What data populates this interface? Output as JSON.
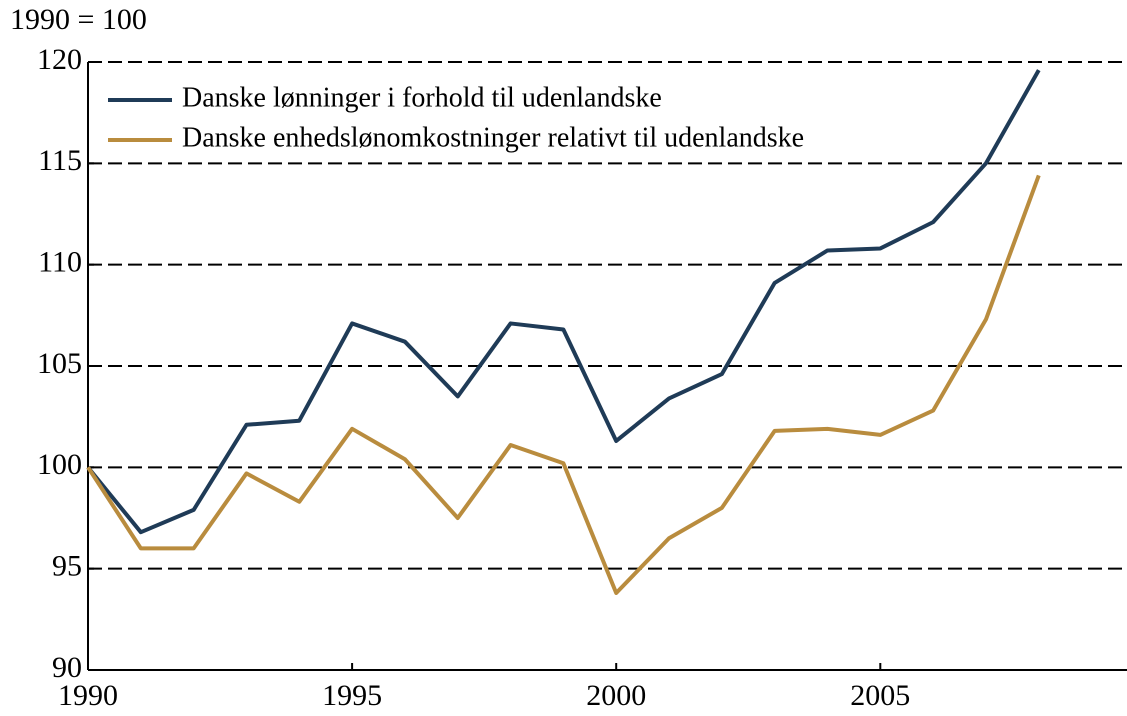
{
  "chart_data": {
    "type": "line",
    "y_axis_label": "1990 = 100",
    "x": [
      1990,
      1991,
      1992,
      1993,
      1994,
      1995,
      1996,
      1997,
      1998,
      1999,
      2000,
      2001,
      2002,
      2003,
      2004,
      2005,
      2006,
      2007,
      2008
    ],
    "series": [
      {
        "name": "Danske lønninger i forhold til udenlandske",
        "color": "#1f3b57",
        "values": [
          100,
          96.8,
          97.9,
          102.1,
          102.3,
          107.1,
          106.2,
          103.5,
          107.1,
          106.8,
          101.3,
          103.4,
          104.6,
          109.1,
          110.7,
          110.8,
          112.1,
          115,
          119.6
        ]
      },
      {
        "name": "Danske enhedslønomkostninger relativt til udenlandske",
        "color": "#b98c3e",
        "values": [
          100,
          96,
          96,
          99.7,
          98.3,
          101.9,
          100.4,
          97.5,
          101.1,
          100.2,
          93.8,
          96.5,
          98,
          101.8,
          101.9,
          101.6,
          102.8,
          107.3,
          114.4
        ]
      }
    ],
    "xlim": [
      1990,
      2009.5
    ],
    "xticks": [
      1990,
      1995,
      2000,
      2005
    ],
    "ylim": [
      90,
      120
    ],
    "yticks": [
      90,
      95,
      100,
      105,
      110,
      115,
      120
    ],
    "grid": true,
    "legend": "top-left"
  }
}
